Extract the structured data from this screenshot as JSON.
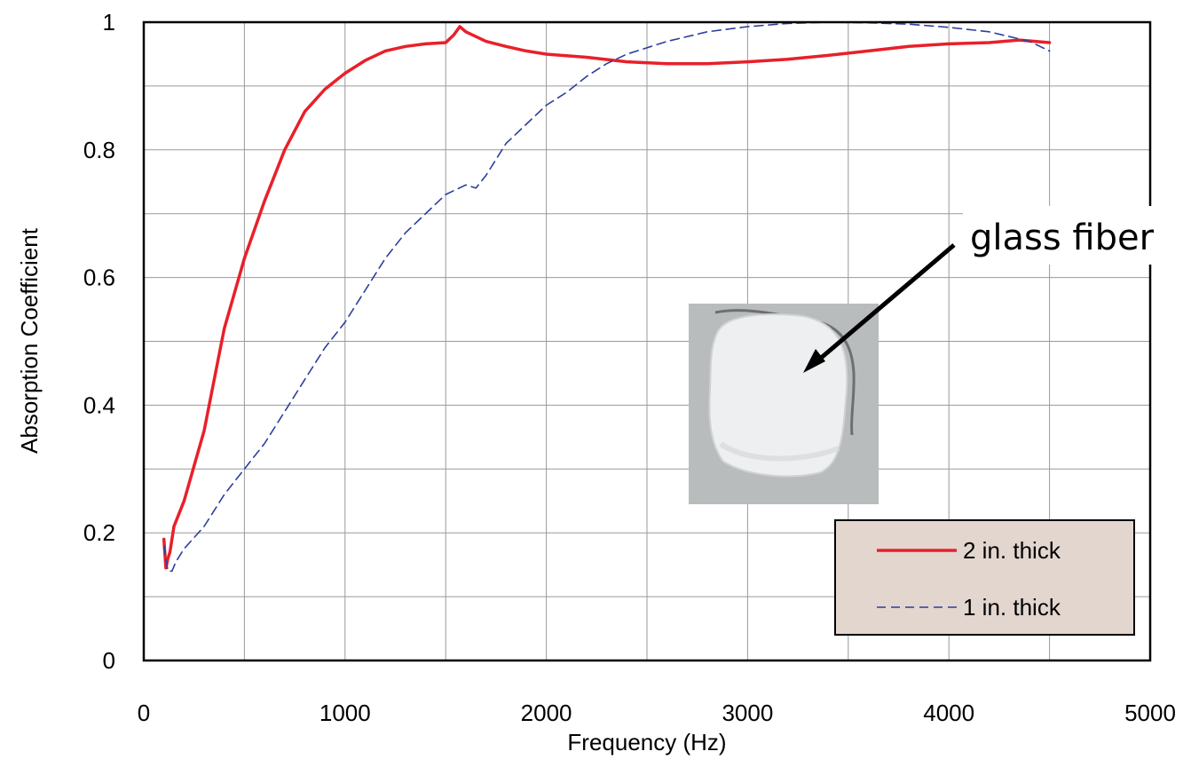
{
  "chart_data": {
    "type": "line",
    "xlabel": "Frequency (Hz)",
    "ylabel": "Absorption Coefficient",
    "xlim": [
      0,
      5000
    ],
    "ylim": [
      0,
      1
    ],
    "x_ticks": [
      "0",
      "1000",
      "2000",
      "3000",
      "4000",
      "5000"
    ],
    "y_ticks": [
      "0",
      "0.2",
      "0.4",
      "0.6",
      "0.8",
      "1"
    ],
    "grid": true,
    "legend_position": "bottom-right",
    "annotation": {
      "text": "glass fiber",
      "has_photo": true
    },
    "series": [
      {
        "name": "2 in. thick",
        "color": "#e8202a",
        "style": "solid",
        "x": [
          100,
          110,
          120,
          130,
          150,
          200,
          300,
          400,
          500,
          600,
          700,
          800,
          900,
          1000,
          1100,
          1200,
          1300,
          1400,
          1500,
          1540,
          1570,
          1600,
          1700,
          1800,
          1900,
          2000,
          2200,
          2400,
          2600,
          2800,
          3000,
          3200,
          3400,
          3600,
          3800,
          4000,
          4200,
          4350,
          4500
        ],
        "y": [
          0.19,
          0.145,
          0.16,
          0.17,
          0.21,
          0.25,
          0.36,
          0.52,
          0.63,
          0.72,
          0.8,
          0.86,
          0.895,
          0.92,
          0.94,
          0.955,
          0.962,
          0.966,
          0.968,
          0.98,
          0.993,
          0.985,
          0.97,
          0.962,
          0.955,
          0.95,
          0.945,
          0.938,
          0.935,
          0.935,
          0.938,
          0.942,
          0.948,
          0.955,
          0.962,
          0.966,
          0.968,
          0.972,
          0.968
        ]
      },
      {
        "name": "1 in. thick",
        "color": "#2b3f9e",
        "style": "dashed",
        "x": [
          100,
          120,
          140,
          160,
          200,
          300,
          400,
          500,
          600,
          700,
          800,
          900,
          1000,
          1100,
          1200,
          1300,
          1400,
          1500,
          1600,
          1650,
          1700,
          1800,
          1900,
          2000,
          2100,
          2200,
          2300,
          2400,
          2600,
          2800,
          3000,
          3200,
          3400,
          3600,
          3800,
          4000,
          4200,
          4400,
          4500
        ],
        "y": [
          0.18,
          0.14,
          0.14,
          0.155,
          0.175,
          0.21,
          0.26,
          0.3,
          0.34,
          0.39,
          0.44,
          0.49,
          0.53,
          0.58,
          0.63,
          0.67,
          0.7,
          0.73,
          0.745,
          0.74,
          0.76,
          0.81,
          0.84,
          0.87,
          0.89,
          0.915,
          0.935,
          0.95,
          0.97,
          0.985,
          0.993,
          0.998,
          1.0,
          0.999,
          0.997,
          0.992,
          0.985,
          0.97,
          0.955
        ]
      }
    ]
  }
}
